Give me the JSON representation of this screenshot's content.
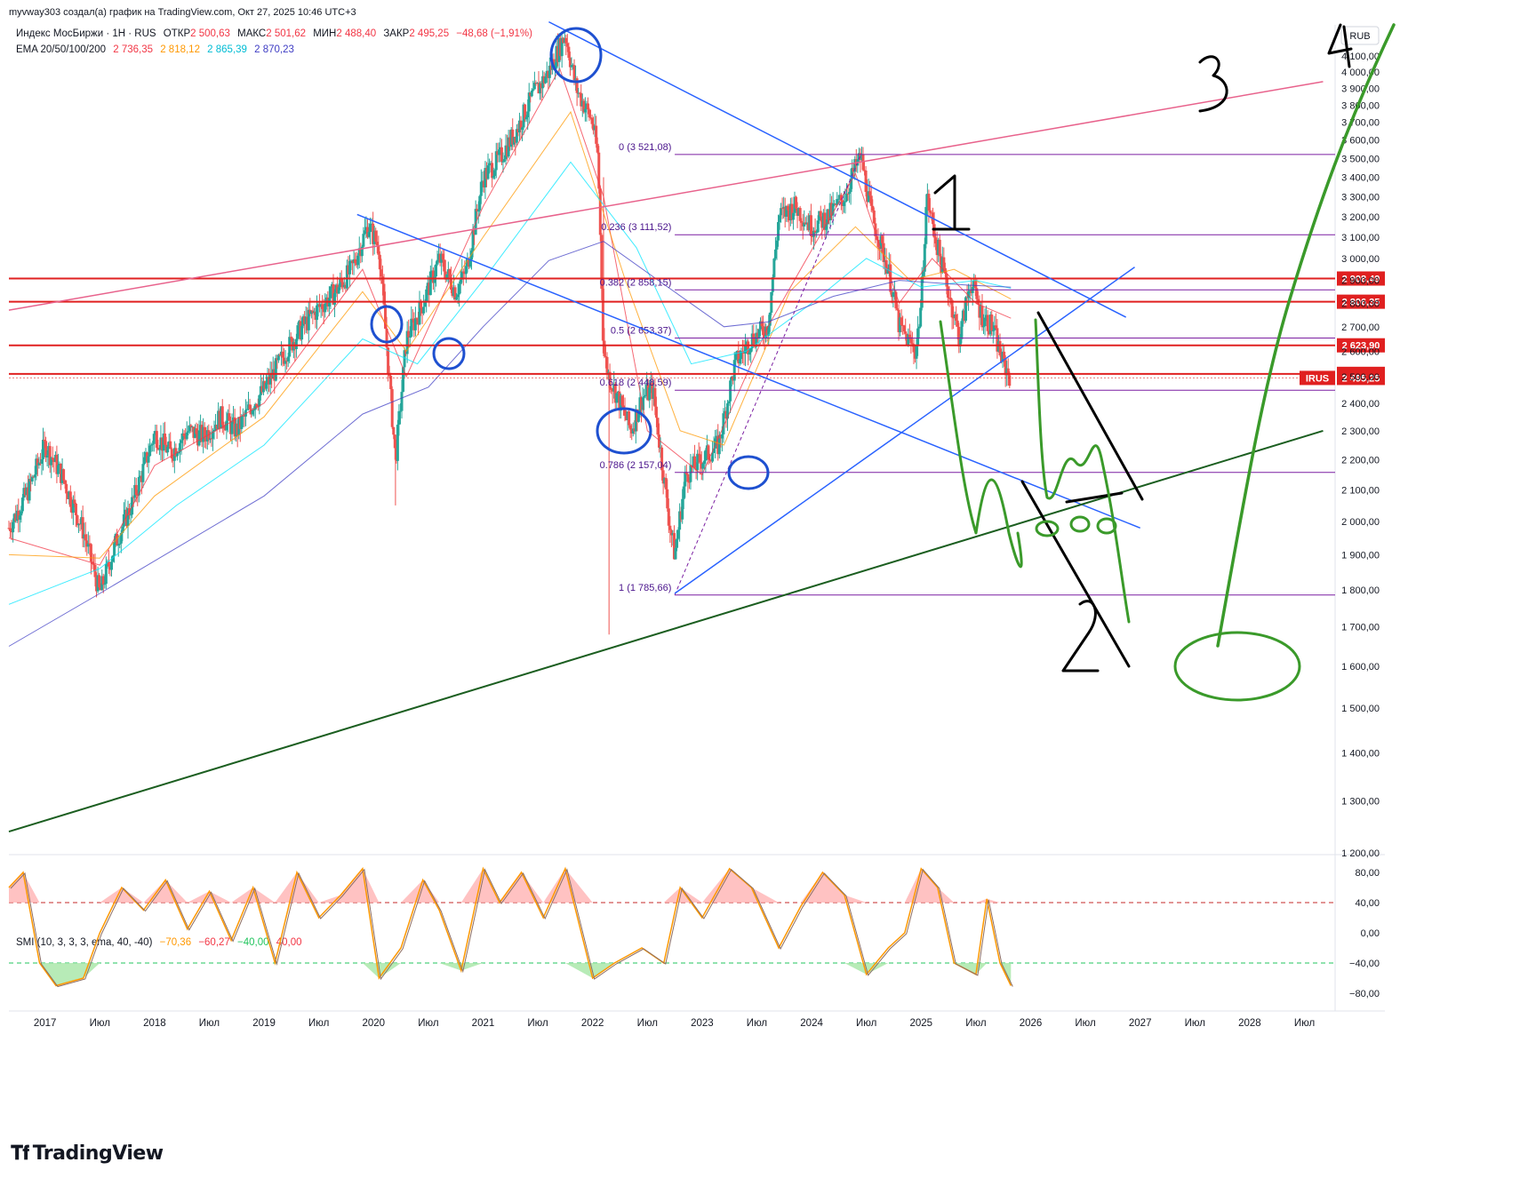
{
  "header": {
    "attribution": "myvway303 создал(а) график на TradingView.com, Окт 27, 2025 10:46 UTC+3"
  },
  "legend": {
    "symbol": "Индекс МосБиржи · 1Н · RUS",
    "open_label": "ОТКР",
    "open": "2 500,63",
    "high_label": "МАКС",
    "high": "2 501,62",
    "low_label": "МИН",
    "low": "2 488,40",
    "close_label": "ЗАКР",
    "close": "2 495,25",
    "change": "−48,68 (−1,91%)",
    "ema_label": "EMA 20/50/100/200",
    "ema20": "2 736,35",
    "ema50": "2 818,12",
    "ema100": "2 865,39",
    "ema200": "2 870,23",
    "smi_label": "SMI (10, 3, 3, 3, ema, 40, -40)",
    "smi1": "−70,36",
    "smi2": "−60,27",
    "smi3": "−40,00",
    "smi4": "40,00"
  },
  "currency": "RUB",
  "logo": "TradingView",
  "colors": {
    "up": "#26a69a",
    "down": "#ef5350",
    "ema20": "#f23645",
    "ema50": "#ff9800",
    "ema100": "#00e5ff",
    "ema200": "#3f3dc4",
    "hline": "#e02020",
    "pink_line": "#e8628c",
    "blue_line": "#2962ff",
    "green_line": "#1b5e20",
    "fib": "#7b1fa2",
    "ink_green": "#3a9a2a",
    "ink_blue": "#1e50d0",
    "ink_black": "#000000"
  },
  "chart_data": [
    {
      "type": "line",
      "title": "Индекс МосБиржи · 1Н · RUS",
      "note": "Candlestick price chart with EMA overlays (approximate trace)",
      "yscale": "log",
      "ylim": [
        1200,
        4300
      ],
      "y_ticks": [
        "4 200,00",
        "4 100,00",
        "4 000,00",
        "3 900,00",
        "3 800,00",
        "3 700,00",
        "3 600,00",
        "3 500,00",
        "3 400,00",
        "3 300,00",
        "3 200,00",
        "3 100,00",
        "3 000,00",
        "2 900,00",
        "2 800,00",
        "2 700,00",
        "2 600,00",
        "2 500,00",
        "2 400,00",
        "2 300,00",
        "2 200,00",
        "2 100,00",
        "2 000,00",
        "1 900,00",
        "1 800,00",
        "1 700,00",
        "1 600,00",
        "1 500,00",
        "1 400,00",
        "1 300,00",
        "1 200,00"
      ],
      "y_tick_values": [
        4200,
        4100,
        4000,
        3900,
        3800,
        3700,
        3600,
        3500,
        3400,
        3300,
        3200,
        3100,
        3000,
        2900,
        2800,
        2700,
        2600,
        2500,
        2400,
        2300,
        2200,
        2100,
        2000,
        1900,
        1800,
        1700,
        1600,
        1500,
        1400,
        1300,
        1200
      ],
      "x_ticks": [
        "2017",
        "Июл",
        "2018",
        "Июл",
        "2019",
        "Июл",
        "2020",
        "Июл",
        "2021",
        "Июл",
        "2022",
        "Июл",
        "2023",
        "Июл",
        "2024",
        "Июл",
        "2025",
        "Июл",
        "2026",
        "Июл",
        "2027",
        "Июл",
        "2028",
        "Июл"
      ],
      "x_tick_dates": [
        2017.0,
        2017.5,
        2018.0,
        2018.5,
        2019.0,
        2019.5,
        2020.0,
        2020.5,
        2021.0,
        2021.5,
        2022.0,
        2022.5,
        2023.0,
        2023.5,
        2024.0,
        2024.5,
        2025.0,
        2025.5,
        2026.0,
        2026.5,
        2027.0,
        2027.5,
        2028.0,
        2028.5
      ],
      "xlim": [
        2016.67,
        2028.78
      ],
      "series": [
        {
          "name": "Индекс МосБиржи",
          "points": [
            [
              2016.67,
              1980
            ],
            [
              2016.85,
              2100
            ],
            [
              2017.0,
              2250
            ],
            [
              2017.15,
              2150
            ],
            [
              2017.35,
              1970
            ],
            [
              2017.5,
              1790
            ],
            [
              2017.65,
              1940
            ],
            [
              2017.8,
              2060
            ],
            [
              2018.0,
              2290
            ],
            [
              2018.15,
              2220
            ],
            [
              2018.3,
              2300
            ],
            [
              2018.45,
              2280
            ],
            [
              2018.6,
              2350
            ],
            [
              2018.75,
              2300
            ],
            [
              2018.9,
              2400
            ],
            [
              2019.0,
              2450
            ],
            [
              2019.2,
              2600
            ],
            [
              2019.35,
              2700
            ],
            [
              2019.5,
              2780
            ],
            [
              2019.65,
              2850
            ],
            [
              2019.8,
              2950
            ],
            [
              2019.95,
              3160
            ],
            [
              2020.05,
              3050
            ],
            [
              2020.2,
              2200
            ],
            [
              2020.3,
              2650
            ],
            [
              2020.45,
              2800
            ],
            [
              2020.6,
              3000
            ],
            [
              2020.75,
              2850
            ],
            [
              2020.85,
              2950
            ],
            [
              2021.0,
              3400
            ],
            [
              2021.15,
              3500
            ],
            [
              2021.3,
              3650
            ],
            [
              2021.45,
              3850
            ],
            [
              2021.6,
              4000
            ],
            [
              2021.75,
              4240
            ],
            [
              2021.85,
              3900
            ],
            [
              2022.0,
              3700
            ],
            [
              2022.05,
              3500
            ],
            [
              2022.1,
              2600
            ],
            [
              2022.15,
              2500
            ],
            [
              2022.25,
              2400
            ],
            [
              2022.35,
              2300
            ],
            [
              2022.45,
              2420
            ],
            [
              2022.55,
              2450
            ],
            [
              2022.7,
              2000
            ],
            [
              2022.75,
              1900
            ],
            [
              2022.85,
              2150
            ],
            [
              2023.0,
              2200
            ],
            [
              2023.15,
              2250
            ],
            [
              2023.3,
              2550
            ],
            [
              2023.45,
              2650
            ],
            [
              2023.6,
              2700
            ],
            [
              2023.7,
              3200
            ],
            [
              2023.85,
              3250
            ],
            [
              2024.0,
              3150
            ],
            [
              2024.15,
              3200
            ],
            [
              2024.3,
              3300
            ],
            [
              2024.4,
              3450
            ],
            [
              2024.45,
              3510
            ],
            [
              2024.55,
              3200
            ],
            [
              2024.7,
              2950
            ],
            [
              2024.8,
              2700
            ],
            [
              2024.95,
              2600
            ],
            [
              2025.0,
              2800
            ],
            [
              2025.05,
              3300
            ],
            [
              2025.15,
              3050
            ],
            [
              2025.25,
              2850
            ],
            [
              2025.35,
              2650
            ],
            [
              2025.45,
              2900
            ],
            [
              2025.55,
              2750
            ],
            [
              2025.65,
              2700
            ],
            [
              2025.75,
              2550
            ],
            [
              2025.82,
              2495
            ]
          ]
        },
        {
          "name": "EMA 20",
          "points": [
            [
              2016.67,
              1950
            ],
            [
              2017.5,
              1870
            ],
            [
              2018.0,
              2180
            ],
            [
              2019.0,
              2400
            ],
            [
              2019.9,
              2950
            ],
            [
              2020.3,
              2500
            ],
            [
              2021.0,
              3250
            ],
            [
              2021.7,
              4020
            ],
            [
              2022.1,
              3300
            ],
            [
              2022.5,
              2300
            ],
            [
              2023.0,
              2150
            ],
            [
              2023.6,
              2700
            ],
            [
              2024.4,
              3420
            ],
            [
              2024.8,
              2800
            ],
            [
              2025.1,
              3000
            ],
            [
              2025.5,
              2800
            ],
            [
              2025.82,
              2736
            ]
          ]
        },
        {
          "name": "EMA 50",
          "points": [
            [
              2016.67,
              1900
            ],
            [
              2017.5,
              1890
            ],
            [
              2018.0,
              2080
            ],
            [
              2019.0,
              2350
            ],
            [
              2019.9,
              2850
            ],
            [
              2020.3,
              2600
            ],
            [
              2021.0,
              3100
            ],
            [
              2021.8,
              3760
            ],
            [
              2022.3,
              2900
            ],
            [
              2022.8,
              2300
            ],
            [
              2023.2,
              2250
            ],
            [
              2023.8,
              2850
            ],
            [
              2024.4,
              3150
            ],
            [
              2024.9,
              2900
            ],
            [
              2025.3,
              2950
            ],
            [
              2025.82,
              2818
            ]
          ]
        },
        {
          "name": "EMA 100",
          "points": [
            [
              2016.67,
              1760
            ],
            [
              2017.5,
              1860
            ],
            [
              2018.2,
              2050
            ],
            [
              2019.0,
              2250
            ],
            [
              2019.9,
              2650
            ],
            [
              2020.4,
              2550
            ],
            [
              2021.0,
              2900
            ],
            [
              2021.8,
              3480
            ],
            [
              2022.4,
              3050
            ],
            [
              2022.9,
              2550
            ],
            [
              2023.4,
              2600
            ],
            [
              2024.0,
              2800
            ],
            [
              2024.5,
              3000
            ],
            [
              2025.0,
              2870
            ],
            [
              2025.5,
              2900
            ],
            [
              2025.82,
              2865
            ]
          ]
        },
        {
          "name": "EMA 200",
          "points": [
            [
              2016.67,
              1650
            ],
            [
              2017.5,
              1790
            ],
            [
              2018.2,
              1920
            ],
            [
              2019.0,
              2080
            ],
            [
              2019.9,
              2360
            ],
            [
              2020.5,
              2460
            ],
            [
              2021.0,
              2700
            ],
            [
              2021.6,
              2990
            ],
            [
              2022.1,
              3080
            ],
            [
              2022.6,
              2900
            ],
            [
              2023.2,
              2700
            ],
            [
              2023.6,
              2720
            ],
            [
              2024.2,
              2830
            ],
            [
              2024.8,
              2900
            ],
            [
              2025.4,
              2880
            ],
            [
              2025.82,
              2870
            ]
          ]
        }
      ],
      "horizontal_levels": [
        {
          "value": 2908.49,
          "label": "2 908,49"
        },
        {
          "value": 2806.35,
          "label": "2 806,35"
        },
        {
          "value": 2623.9,
          "label": "2 623,90"
        },
        {
          "value": 2510.99,
          "label": "2 510,99"
        },
        {
          "value": 2495.25,
          "label": "2 495,25",
          "tag": "IRUS"
        }
      ],
      "fibonacci": [
        {
          "level": "0",
          "value": 3521.08,
          "label": "0 (3 521,08)"
        },
        {
          "level": "0.236",
          "value": 3111.52,
          "label": "0.236 (3 111,52)"
        },
        {
          "level": "0.382",
          "value": 2858.15,
          "label": "0.382 (2 858,15)"
        },
        {
          "level": "0.5",
          "value": 2653.37,
          "label": "0.5 (2 653,37)"
        },
        {
          "level": "0.618",
          "value": 2448.59,
          "label": "0.618 (2 448,59)"
        },
        {
          "level": "0.786",
          "value": 2157.04,
          "label": "0.786 (2 157,04)"
        },
        {
          "level": "1",
          "value": 1785.66,
          "label": "1 (1 785,66)"
        }
      ],
      "trendlines": [
        {
          "name": "pink",
          "from": [
            2016.67,
            2770
          ],
          "to": [
            2028.67,
            3940
          ]
        },
        {
          "name": "blue-top",
          "from": [
            2021.6,
            4320
          ],
          "to": [
            2026.87,
            2740
          ]
        },
        {
          "name": "blue-mid",
          "from": [
            2019.85,
            3210
          ],
          "to": [
            2027.0,
            1980
          ]
        },
        {
          "name": "blue-up",
          "from": [
            2022.75,
            1790
          ],
          "to": [
            2026.95,
            2960
          ]
        },
        {
          "name": "green-support",
          "from": [
            2016.67,
            1240
          ],
          "to": [
            2028.67,
            2300
          ]
        }
      ],
      "annotations": [
        "1",
        "2",
        "3",
        "4"
      ]
    },
    {
      "type": "line",
      "title": "SMI (10, 3, 3, 3, ema, 40, -40)",
      "ylim": [
        -100,
        100
      ],
      "y_ticks": [
        "80,00",
        "40,00",
        "0,00",
        "−40,00",
        "−80,00"
      ],
      "y_tick_values": [
        80,
        40,
        0,
        -40,
        -80
      ],
      "bands": [
        40,
        -40
      ],
      "series": [
        {
          "name": "SMI",
          "points": [
            [
              2016.67,
              60
            ],
            [
              2016.8,
              80
            ],
            [
              2016.95,
              -40
            ],
            [
              2017.1,
              -70
            ],
            [
              2017.35,
              -60
            ],
            [
              2017.5,
              0
            ],
            [
              2017.7,
              60
            ],
            [
              2017.9,
              30
            ],
            [
              2018.1,
              70
            ],
            [
              2018.3,
              5
            ],
            [
              2018.5,
              55
            ],
            [
              2018.7,
              -10
            ],
            [
              2018.9,
              60
            ],
            [
              2019.1,
              -40
            ],
            [
              2019.3,
              80
            ],
            [
              2019.5,
              20
            ],
            [
              2019.7,
              50
            ],
            [
              2019.9,
              85
            ],
            [
              2020.05,
              -60
            ],
            [
              2020.25,
              -20
            ],
            [
              2020.45,
              70
            ],
            [
              2020.6,
              30
            ],
            [
              2020.8,
              -50
            ],
            [
              2021.0,
              85
            ],
            [
              2021.15,
              40
            ],
            [
              2021.35,
              80
            ],
            [
              2021.55,
              20
            ],
            [
              2021.75,
              85
            ],
            [
              2022.0,
              -60
            ],
            [
              2022.2,
              -40
            ],
            [
              2022.45,
              -20
            ],
            [
              2022.65,
              -40
            ],
            [
              2022.8,
              60
            ],
            [
              2023.0,
              20
            ],
            [
              2023.25,
              85
            ],
            [
              2023.45,
              60
            ],
            [
              2023.7,
              -20
            ],
            [
              2023.9,
              35
            ],
            [
              2024.1,
              80
            ],
            [
              2024.3,
              50
            ],
            [
              2024.5,
              -55
            ],
            [
              2024.7,
              -20
            ],
            [
              2024.85,
              0
            ],
            [
              2025.0,
              85
            ],
            [
              2025.15,
              60
            ],
            [
              2025.3,
              -40
            ],
            [
              2025.5,
              -55
            ],
            [
              2025.6,
              45
            ],
            [
              2025.72,
              -40
            ],
            [
              2025.82,
              -70
            ]
          ]
        }
      ]
    }
  ]
}
